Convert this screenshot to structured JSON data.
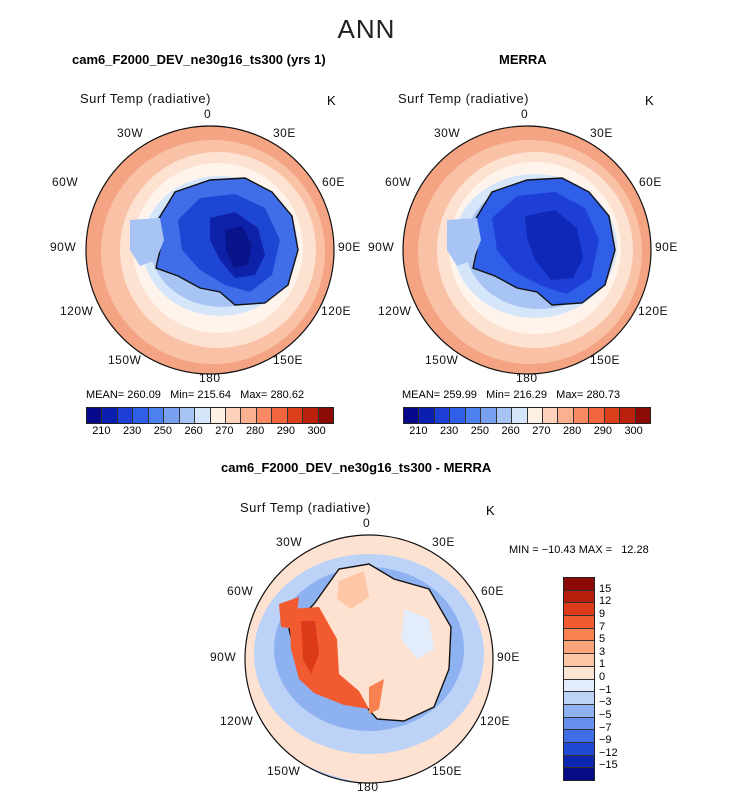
{
  "title": "ANN",
  "panels": [
    {
      "id": "model",
      "title": "cam6_F2000_DEV_ne30g16_ts300 (yrs 1)",
      "variable": "Surf Temp (radiative)",
      "units": "K",
      "stats": {
        "mean_label": "MEAN=",
        "mean": "260.09",
        "min_label": "Min=",
        "min": "215.64",
        "max_label": "Max=",
        "max": "280.62"
      },
      "colorbar_ticks": [
        "210",
        "230",
        "250",
        "260",
        "270",
        "280",
        "290",
        "300"
      ],
      "colorbar_colors": [
        "#08088c",
        "#0a1fb0",
        "#1d3fd6",
        "#2f5ee8",
        "#4c7ff0",
        "#7aa0f2",
        "#a8c4f5",
        "#d6e6fa",
        "#fff0e4",
        "#ffd2bc",
        "#fdb08f",
        "#f98a64",
        "#f26540",
        "#dc3f1c",
        "#bb200c",
        "#8c0b06"
      ]
    },
    {
      "id": "obs",
      "title": "MERRA",
      "variable": "Surf Temp (radiative)",
      "units": "K",
      "stats": {
        "mean_label": "MEAN=",
        "mean": "259.99",
        "min_label": "Min=",
        "min": "216.29",
        "max_label": "Max=",
        "max": "280.73"
      },
      "colorbar_ticks": [
        "210",
        "230",
        "250",
        "260",
        "270",
        "280",
        "290",
        "300"
      ],
      "colorbar_colors": [
        "#08088c",
        "#0a1fb0",
        "#1d3fd6",
        "#2f5ee8",
        "#4c7ff0",
        "#7aa0f2",
        "#a8c4f5",
        "#d6e6fa",
        "#fff0e4",
        "#ffd2bc",
        "#fdb08f",
        "#f98a64",
        "#f26540",
        "#dc3f1c",
        "#bb200c",
        "#8c0b06"
      ]
    }
  ],
  "diff_panel": {
    "title": "cam6_F2000_DEV_ne30g16_ts300 - MERRA",
    "variable": "Surf Temp (radiative)",
    "units": "K",
    "min_max": "MIN = −10.43 MAX =   12.28",
    "colorbar_ticks": [
      "15",
      "12",
      "9",
      "7",
      "5",
      "3",
      "1",
      "0",
      "−1",
      "−3",
      "−5",
      "−7",
      "−9",
      "−12",
      "−15"
    ],
    "colorbar_colors": [
      "#8c0b06",
      "#b81d0c",
      "#dc3a18",
      "#f25a30",
      "#f9804f",
      "#fca47a",
      "#fdc6a6",
      "#fee4d2",
      "#e2ecfa",
      "#bcd2f7",
      "#8eb1f2",
      "#6690ee",
      "#3f6ee6",
      "#1f4ad4",
      "#0d26b0",
      "#060c86"
    ]
  },
  "map_labels": {
    "top": "0",
    "upper_left": "30W",
    "upper_right": "30E",
    "mid_upper_left": "60W",
    "mid_upper_right": "60E",
    "left": "90W",
    "right": "90E",
    "mid_lower_left": "120W",
    "mid_lower_right": "120E",
    "lower_left": "150W",
    "lower_right": "150E",
    "bottom": "180"
  }
}
